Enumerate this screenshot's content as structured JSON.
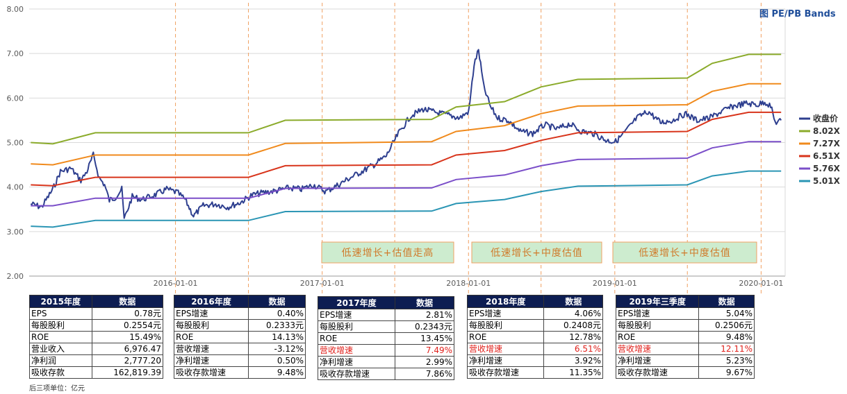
{
  "chart_data": {
    "type": "line",
    "title": "图 PE/PB Bands",
    "ylim": [
      2.0,
      8.0
    ],
    "y_ticks": [
      "8.00",
      "7.00",
      "6.00",
      "5.00",
      "4.00",
      "3.00",
      "2.00"
    ],
    "x_ticks": [
      "2016-01-01",
      "2017-01-01",
      "2018-01-01",
      "2019-01-01",
      "2020-01-01"
    ],
    "xlim": [
      "2015-01-01",
      "2020-03-01"
    ],
    "grid": "horizontal",
    "legend_position": "right",
    "series": [
      {
        "name": "收盘价",
        "color": "#2e3f8f",
        "x": [
          "2015-01-05",
          "2015-02-01",
          "2015-03-01",
          "2015-03-20",
          "2015-04-15",
          "2015-05-10",
          "2015-05-25",
          "2015-06-10",
          "2015-06-25",
          "2015-07-08",
          "2015-07-20",
          "2015-08-05",
          "2015-08-20",
          "2015-08-26",
          "2015-09-15",
          "2015-10-10",
          "2015-11-10",
          "2015-12-10",
          "2016-01-05",
          "2016-01-25",
          "2016-02-15",
          "2016-03-10",
          "2016-04-10",
          "2016-05-10",
          "2016-06-10",
          "2016-07-10",
          "2016-08-10",
          "2016-09-10",
          "2016-10-10",
          "2016-11-10",
          "2016-12-10",
          "2017-01-10",
          "2017-02-10",
          "2017-03-10",
          "2017-04-10",
          "2017-05-10",
          "2017-06-10",
          "2017-07-10",
          "2017-08-10",
          "2017-09-10",
          "2017-10-10",
          "2017-11-10",
          "2017-12-10",
          "2018-01-02",
          "2018-01-15",
          "2018-01-26",
          "2018-02-08",
          "2018-02-25",
          "2018-03-15",
          "2018-04-10",
          "2018-05-10",
          "2018-06-10",
          "2018-07-10",
          "2018-08-10",
          "2018-09-10",
          "2018-10-10",
          "2018-11-10",
          "2018-12-10",
          "2019-01-03",
          "2019-01-25",
          "2019-02-25",
          "2019-03-25",
          "2019-04-25",
          "2019-05-25",
          "2019-06-25",
          "2019-07-25",
          "2019-08-25",
          "2019-09-25",
          "2019-10-25",
          "2019-11-25",
          "2019-12-25",
          "2020-01-10",
          "2020-01-25",
          "2020-02-05",
          "2020-02-20"
        ],
        "values": [
          3.62,
          3.55,
          3.95,
          4.35,
          4.42,
          4.15,
          4.35,
          4.72,
          4.2,
          4.05,
          3.7,
          3.78,
          3.95,
          3.28,
          3.78,
          3.72,
          3.82,
          3.95,
          3.88,
          3.72,
          3.35,
          3.58,
          3.62,
          3.55,
          3.65,
          3.82,
          3.88,
          3.92,
          3.98,
          3.95,
          4.05,
          3.9,
          4.05,
          4.2,
          4.35,
          4.5,
          4.7,
          5.2,
          5.6,
          5.75,
          5.68,
          5.62,
          5.55,
          5.7,
          6.75,
          7.08,
          6.25,
          5.8,
          5.55,
          5.5,
          5.25,
          5.2,
          5.4,
          5.3,
          5.42,
          5.25,
          5.2,
          5.05,
          5.02,
          5.22,
          5.55,
          5.7,
          5.45,
          5.5,
          5.65,
          5.5,
          5.55,
          5.7,
          5.82,
          5.88,
          5.85,
          5.92,
          5.82,
          5.45,
          5.5
        ]
      },
      {
        "name": "8.02X",
        "color": "#8bab2b",
        "x": [
          "2015-01-05",
          "2015-03-01",
          "2015-06-15",
          "2016-07-01",
          "2016-10-01",
          "2017-10-01",
          "2017-12-01",
          "2018-04-01",
          "2018-07-01",
          "2018-10-01",
          "2019-07-01",
          "2019-09-01",
          "2019-12-01",
          "2020-02-20"
        ],
        "values": [
          5.0,
          4.97,
          5.22,
          5.22,
          5.5,
          5.52,
          5.8,
          5.92,
          6.25,
          6.42,
          6.45,
          6.78,
          6.98,
          6.98
        ]
      },
      {
        "name": "7.27X",
        "color": "#f08a1c",
        "x": [
          "2015-01-05",
          "2015-03-01",
          "2015-06-15",
          "2016-07-01",
          "2016-10-01",
          "2017-10-01",
          "2017-12-01",
          "2018-04-01",
          "2018-07-01",
          "2018-10-01",
          "2019-07-01",
          "2019-09-01",
          "2019-12-01",
          "2020-02-20"
        ],
        "values": [
          4.52,
          4.5,
          4.72,
          4.72,
          4.98,
          5.02,
          5.25,
          5.38,
          5.65,
          5.82,
          5.85,
          6.15,
          6.32,
          6.32
        ]
      },
      {
        "name": "6.51X",
        "color": "#d8341b",
        "x": [
          "2015-01-05",
          "2015-03-01",
          "2015-06-15",
          "2016-07-01",
          "2016-10-01",
          "2017-10-01",
          "2017-12-01",
          "2018-04-01",
          "2018-07-01",
          "2018-10-01",
          "2019-07-01",
          "2019-09-01",
          "2019-12-01",
          "2020-02-20"
        ],
        "values": [
          4.05,
          4.03,
          4.22,
          4.22,
          4.48,
          4.5,
          4.72,
          4.82,
          5.05,
          5.22,
          5.25,
          5.52,
          5.68,
          5.68
        ]
      },
      {
        "name": "5.76X",
        "color": "#7b4fc9",
        "x": [
          "2015-01-05",
          "2015-03-01",
          "2015-06-15",
          "2016-07-01",
          "2016-10-01",
          "2017-10-01",
          "2017-12-01",
          "2018-04-01",
          "2018-07-01",
          "2018-10-01",
          "2019-07-01",
          "2019-09-01",
          "2019-12-01",
          "2020-02-20"
        ],
        "values": [
          3.58,
          3.58,
          3.75,
          3.75,
          3.97,
          3.98,
          4.17,
          4.27,
          4.48,
          4.62,
          4.65,
          4.88,
          5.02,
          5.02
        ]
      },
      {
        "name": "5.01X",
        "color": "#2a95b4",
        "x": [
          "2015-01-05",
          "2015-03-01",
          "2015-06-15",
          "2016-07-01",
          "2016-10-01",
          "2017-10-01",
          "2017-12-01",
          "2018-04-01",
          "2018-07-01",
          "2018-10-01",
          "2019-07-01",
          "2019-09-01",
          "2019-12-01",
          "2020-02-20"
        ],
        "values": [
          3.12,
          3.1,
          3.25,
          3.25,
          3.45,
          3.46,
          3.63,
          3.72,
          3.9,
          4.02,
          4.05,
          4.25,
          4.36,
          4.36
        ]
      }
    ],
    "vlines": [
      "2016-01-01",
      "2016-07-01",
      "2017-01-01",
      "2017-07-01",
      "2018-01-01",
      "2018-07-01",
      "2019-01-01",
      "2019-07-01",
      "2020-01-01"
    ],
    "annotations": [
      {
        "text": "低速增长+估值走高"
      },
      {
        "text": "低速增长+中度估值"
      },
      {
        "text": "低速增长+中度估值"
      }
    ]
  },
  "tables": [
    {
      "title": "2015年度",
      "header_value": "数据",
      "rows": [
        {
          "label": "EPS",
          "value": "0.78元",
          "hl": false
        },
        {
          "label": "每股股利",
          "value": "0.2554元",
          "hl": false
        },
        {
          "label": "ROE",
          "value": "15.49%",
          "hl": false
        },
        {
          "label": "营业收入",
          "value": "6,976.47",
          "hl": false
        },
        {
          "label": "净利润",
          "value": "2,777.20",
          "hl": false
        },
        {
          "label": "吸收存款",
          "value": "162,819.39",
          "hl": false
        }
      ]
    },
    {
      "title": "2016年度",
      "header_value": "数据",
      "rows": [
        {
          "label": "EPS增速",
          "value": "0.40%",
          "hl": false
        },
        {
          "label": "每股股利",
          "value": "0.2333元",
          "hl": false
        },
        {
          "label": "ROE",
          "value": "14.13%",
          "hl": false
        },
        {
          "label": "营收增速",
          "value": "-3.12%",
          "hl": false
        },
        {
          "label": "净利增速",
          "value": "0.50%",
          "hl": false
        },
        {
          "label": "吸收存款增速",
          "value": "9.48%",
          "hl": false
        }
      ]
    },
    {
      "title": "2017年度",
      "header_value": "数据",
      "rows": [
        {
          "label": "EPS增速",
          "value": "2.81%",
          "hl": false
        },
        {
          "label": "每股股利",
          "value": "0.2343元",
          "hl": false
        },
        {
          "label": "ROE",
          "value": "13.45%",
          "hl": false
        },
        {
          "label": "营收增速",
          "value": "7.49%",
          "hl": true
        },
        {
          "label": "净利增速",
          "value": "2.99%",
          "hl": false
        },
        {
          "label": "吸收存款增速",
          "value": "7.86%",
          "hl": false
        }
      ]
    },
    {
      "title": "2018年度",
      "header_value": "数据",
      "rows": [
        {
          "label": "EPS增速",
          "value": "4.06%",
          "hl": false
        },
        {
          "label": "每股股利",
          "value": "0.2408元",
          "hl": false
        },
        {
          "label": "ROE",
          "value": "12.78%",
          "hl": false
        },
        {
          "label": "营收增速",
          "value": "6.51%",
          "hl": true
        },
        {
          "label": "净利增速",
          "value": "3.92%",
          "hl": false
        },
        {
          "label": "吸收存款增速",
          "value": "11.35%",
          "hl": false
        }
      ]
    },
    {
      "title": "2019年三季度",
      "header_value": "数据",
      "rows": [
        {
          "label": "EPS增速",
          "value": "5.04%",
          "hl": false
        },
        {
          "label": "每股股利",
          "value": "0.2506元",
          "hl": false
        },
        {
          "label": "ROE",
          "value": "9.48%",
          "hl": false
        },
        {
          "label": "营收增速",
          "value": "12.11%",
          "hl": true
        },
        {
          "label": "净利增速",
          "value": "5.23%",
          "hl": false
        },
        {
          "label": "吸收存款增速",
          "value": "9.67%",
          "hl": false
        }
      ]
    }
  ],
  "note": "后三项单位：亿元"
}
